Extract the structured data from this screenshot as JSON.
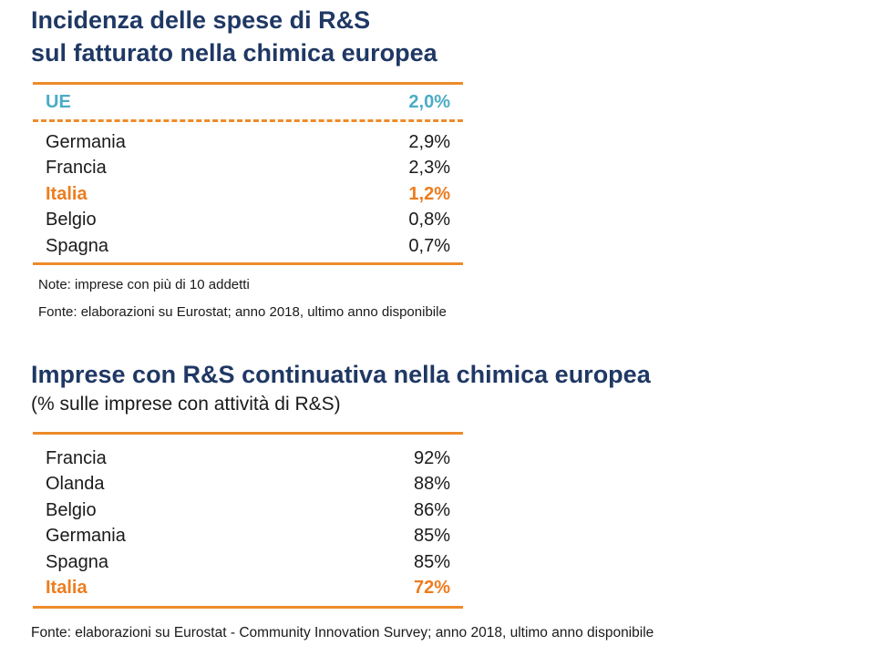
{
  "section1": {
    "title_line1": "Incidenza delle spese di R&S",
    "title_line2": "sul fatturato nella chimica europea",
    "eu_row": {
      "country": "UE",
      "value": "2,0%"
    },
    "rows": [
      {
        "country": "Germania",
        "value": "2,9%"
      },
      {
        "country": "Francia",
        "value": "2,3%"
      },
      {
        "country": "Italia",
        "value": "1,2%"
      },
      {
        "country": "Belgio",
        "value": "0,8%"
      },
      {
        "country": "Spagna",
        "value": "0,7%"
      }
    ],
    "note": "Note: imprese con più di 10 addetti",
    "source": "Fonte: elaborazioni su Eurostat; anno 2018, ultimo anno disponibile"
  },
  "section2": {
    "title": "Imprese con R&S continuativa nella chimica europea",
    "subtitle": "(% sulle imprese con attività di R&S)",
    "rows": [
      {
        "country": "Francia",
        "value": "92%"
      },
      {
        "country": "Olanda",
        "value": "88%"
      },
      {
        "country": "Belgio",
        "value": "86%"
      },
      {
        "country": "Germania",
        "value": "85%"
      },
      {
        "country": "Spagna",
        "value": "85%"
      },
      {
        "country": "Italia",
        "value": "72%"
      }
    ],
    "source": "Fonte: elaborazioni su Eurostat - Community Innovation Survey; anno 2018, ultimo anno disponibile"
  },
  "colors": {
    "title": "#1f3864",
    "accent_orange": "#ed8b2a",
    "eu_blue": "#4bacc6",
    "italy_orange": "#ed7d1f"
  }
}
